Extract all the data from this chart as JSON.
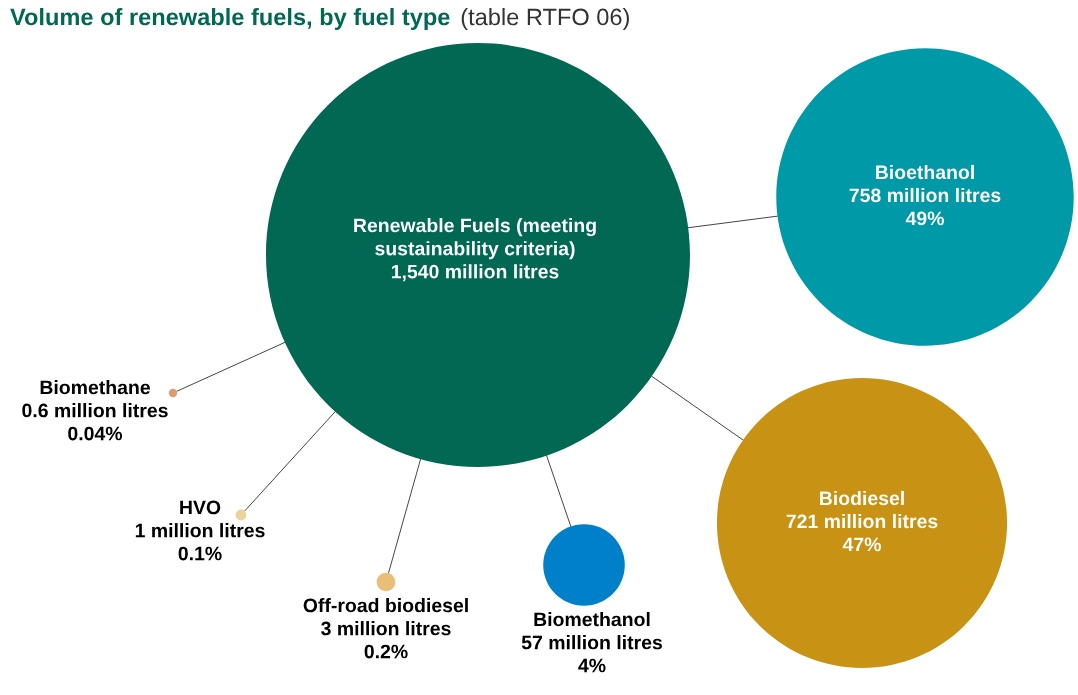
{
  "chart_data": {
    "type": "other",
    "title": "Volume of renewable fuels, by fuel type",
    "subtitle": "(table RTFO 06)",
    "categories": [
      "Renewable Fuels (meeting\nsustainability criteria)",
      "Bioethanol",
      "Biodiesel",
      "Biomethanol",
      "Off-road biodiesel",
      "HVO",
      "Biomethane"
    ],
    "series": [
      {
        "colors": [
          "#006853",
          "#0099a8",
          "#c89214",
          "#0080c8",
          "#e8be78",
          "#ebd29a",
          "#e09a70"
        ],
        "values": [
          1540,
          758,
          721,
          57,
          3,
          1,
          0.6
        ],
        "value_labels": [
          "1,540 million litres",
          "758 million litres",
          "721 million litres",
          "57 million litres",
          "3 million litres",
          "1 million litres",
          "0.6 million litres"
        ]
      },
      {
        "values": [
          null,
          49,
          47,
          4,
          0.2,
          0.1,
          0.04
        ],
        "value_labels": [
          null,
          "49%",
          "47%",
          "4%",
          "0.2%",
          "0.1%",
          "0.04%"
        ]
      }
    ]
  }
}
